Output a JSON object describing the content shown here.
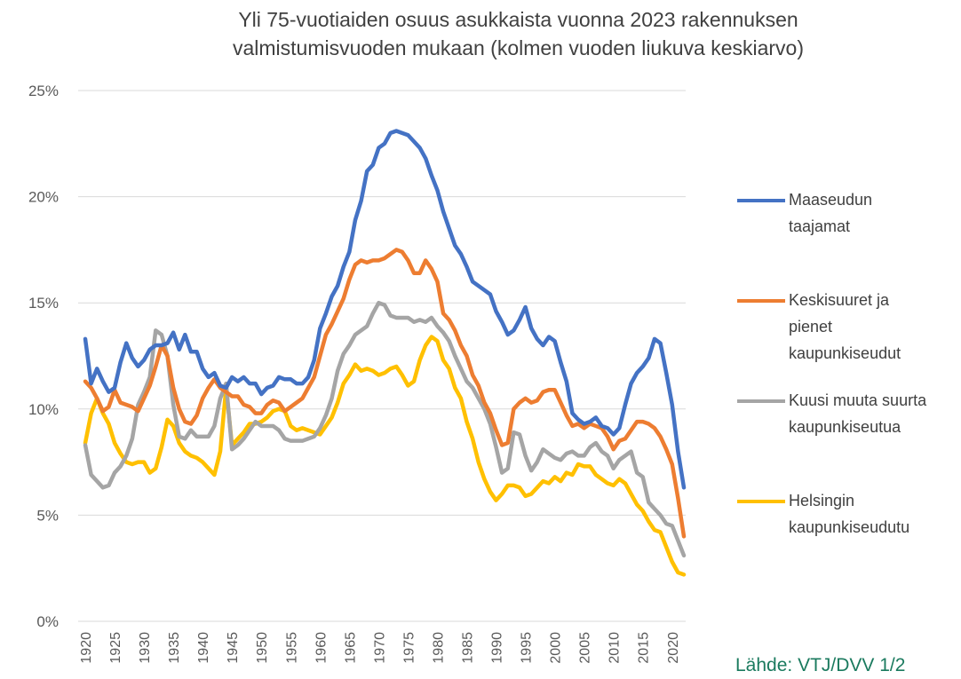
{
  "chart_data": {
    "type": "line",
    "title": [
      "Yli 75-vuotiaiden osuus asukkaista vuonna 2023 rakennuksen",
      "valmistumisvuoden mukaan (kolmen vuoden liukuva keskiarvo)"
    ],
    "source": "Lähde: VTJ/DVV 1/2",
    "x": [
      1920,
      1921,
      1922,
      1923,
      1924,
      1925,
      1926,
      1927,
      1928,
      1929,
      1930,
      1931,
      1932,
      1933,
      1934,
      1935,
      1936,
      1937,
      1938,
      1939,
      1940,
      1941,
      1942,
      1943,
      1944,
      1945,
      1946,
      1947,
      1948,
      1949,
      1950,
      1951,
      1952,
      1953,
      1954,
      1955,
      1956,
      1957,
      1958,
      1959,
      1960,
      1961,
      1962,
      1963,
      1964,
      1965,
      1966,
      1967,
      1968,
      1969,
      1970,
      1971,
      1972,
      1973,
      1974,
      1975,
      1976,
      1977,
      1978,
      1979,
      1980,
      1981,
      1982,
      1983,
      1984,
      1985,
      1986,
      1987,
      1988,
      1989,
      1990,
      1991,
      1992,
      1993,
      1994,
      1995,
      1996,
      1997,
      1998,
      1999,
      2000,
      2001,
      2002,
      2003,
      2004,
      2005,
      2006,
      2007,
      2008,
      2009,
      2010,
      2011,
      2012,
      2013,
      2014,
      2015,
      2016,
      2017,
      2018,
      2019,
      2020,
      2021,
      2022
    ],
    "xlim": [
      1919,
      2023
    ],
    "xticks": [
      1920,
      1925,
      1930,
      1935,
      1940,
      1945,
      1950,
      1955,
      1960,
      1965,
      1970,
      1975,
      1980,
      1985,
      1990,
      1995,
      2000,
      2005,
      2010,
      2015,
      2020
    ],
    "ylim": [
      0,
      25
    ],
    "yticks": [
      {
        "value": 0,
        "label": "0%"
      },
      {
        "value": 5,
        "label": "5%"
      },
      {
        "value": 10,
        "label": "10%"
      },
      {
        "value": 15,
        "label": "15%"
      },
      {
        "value": 20,
        "label": "20%"
      },
      {
        "value": 25,
        "label": "25%"
      }
    ],
    "grid": true,
    "legend": "right",
    "series": [
      {
        "name": "Maaseudun taajamat",
        "color": "#4472c4",
        "values": [
          13.3,
          11.2,
          11.9,
          11.3,
          10.8,
          11.0,
          12.2,
          13.1,
          12.4,
          12.0,
          12.3,
          12.8,
          13.0,
          13.0,
          13.1,
          13.6,
          12.8,
          13.5,
          12.7,
          12.7,
          11.9,
          11.5,
          11.7,
          11.1,
          11.0,
          11.5,
          11.3,
          11.5,
          11.2,
          11.2,
          10.7,
          11.0,
          11.1,
          11.5,
          11.4,
          11.4,
          11.2,
          11.2,
          11.5,
          12.3,
          13.8,
          14.5,
          15.3,
          15.8,
          16.7,
          17.4,
          18.9,
          19.8,
          21.2,
          21.5,
          22.3,
          22.5,
          23.0,
          23.1,
          23.0,
          22.9,
          22.6,
          22.3,
          21.8,
          21.0,
          20.3,
          19.3,
          18.5,
          17.7,
          17.3,
          16.7,
          16.0,
          15.8,
          15.6,
          15.4,
          14.6,
          14.1,
          13.5,
          13.7,
          14.2,
          14.8,
          13.8,
          13.3,
          13.0,
          13.4,
          13.2,
          12.2,
          11.3,
          9.8,
          9.5,
          9.3,
          9.4,
          9.6,
          9.2,
          9.1,
          8.8,
          9.1,
          10.2,
          11.2,
          11.7,
          12.0,
          12.4,
          13.3,
          13.1,
          11.7,
          10.2,
          8.0,
          6.3
        ]
      },
      {
        "name": "Keskisuuret ja pienet kaupunkiseudut",
        "color": "#ed7d31",
        "values": [
          11.3,
          11.0,
          10.5,
          9.9,
          10.1,
          10.9,
          10.3,
          10.2,
          10.1,
          9.9,
          10.5,
          11.1,
          12.0,
          13.0,
          12.5,
          11.0,
          10.0,
          9.4,
          9.3,
          9.7,
          10.5,
          11.0,
          11.4,
          11.0,
          10.8,
          10.6,
          10.6,
          10.2,
          10.1,
          9.8,
          9.8,
          10.2,
          10.4,
          10.3,
          9.9,
          10.1,
          10.3,
          10.5,
          11.0,
          11.5,
          12.5,
          13.5,
          14.0,
          14.6,
          15.2,
          16.1,
          16.8,
          17.0,
          16.9,
          17.0,
          17.0,
          17.1,
          17.3,
          17.5,
          17.4,
          17.0,
          16.4,
          16.4,
          17.0,
          16.6,
          16.0,
          14.5,
          14.2,
          13.7,
          13.0,
          12.5,
          11.6,
          11.1,
          10.3,
          9.8,
          9.0,
          8.3,
          8.4,
          10.0,
          10.3,
          10.5,
          10.3,
          10.4,
          10.8,
          10.9,
          10.9,
          10.3,
          9.7,
          9.2,
          9.3,
          9.1,
          9.3,
          9.2,
          9.1,
          8.7,
          8.1,
          8.5,
          8.6,
          9.0,
          9.4,
          9.4,
          9.3,
          9.1,
          8.7,
          8.1,
          7.4,
          5.8,
          4.0
        ]
      },
      {
        "name": "Kuusi muuta suurta kaupunkiseutua",
        "color": "#a5a5a5",
        "values": [
          8.3,
          6.9,
          6.6,
          6.3,
          6.4,
          7.0,
          7.3,
          7.8,
          8.6,
          10.2,
          10.8,
          11.5,
          13.7,
          13.5,
          12.5,
          10.2,
          8.7,
          8.6,
          9.0,
          8.7,
          8.7,
          8.7,
          9.2,
          10.5,
          11.2,
          8.1,
          8.3,
          8.6,
          9.0,
          9.4,
          9.2,
          9.2,
          9.2,
          9.0,
          8.6,
          8.5,
          8.5,
          8.5,
          8.6,
          8.7,
          9.1,
          9.7,
          10.5,
          11.8,
          12.6,
          13.0,
          13.5,
          13.7,
          13.9,
          14.5,
          15.0,
          14.9,
          14.4,
          14.3,
          14.3,
          14.3,
          14.1,
          14.2,
          14.1,
          14.3,
          13.9,
          13.6,
          13.2,
          12.5,
          11.9,
          11.3,
          11.0,
          10.5,
          10.0,
          9.3,
          8.2,
          7.0,
          7.2,
          8.9,
          8.8,
          7.8,
          7.1,
          7.5,
          8.1,
          7.9,
          7.7,
          7.6,
          7.9,
          8.0,
          7.8,
          7.8,
          8.2,
          8.4,
          8.0,
          7.8,
          7.2,
          7.6,
          7.8,
          8.0,
          7.0,
          6.8,
          5.6,
          5.3,
          5.0,
          4.6,
          4.5,
          3.8,
          3.1
        ]
      },
      {
        "name": "Helsingin kaupunkiseudutu",
        "color": "#ffc000",
        "values": [
          8.4,
          9.8,
          10.5,
          9.8,
          9.3,
          8.4,
          7.9,
          7.5,
          7.4,
          7.5,
          7.5,
          7.0,
          7.2,
          8.2,
          9.5,
          9.2,
          8.4,
          8.0,
          7.8,
          7.7,
          7.5,
          7.2,
          6.9,
          8.0,
          11.0,
          8.3,
          8.6,
          8.9,
          9.3,
          9.3,
          9.4,
          9.6,
          9.9,
          10.0,
          9.9,
          9.2,
          9.0,
          9.1,
          9.0,
          8.9,
          8.8,
          9.2,
          9.6,
          10.3,
          11.2,
          11.6,
          12.1,
          11.8,
          11.9,
          11.8,
          11.6,
          11.7,
          11.9,
          12.0,
          11.6,
          11.1,
          11.3,
          12.3,
          13.0,
          13.4,
          13.2,
          12.3,
          11.9,
          11.0,
          10.5,
          9.4,
          8.6,
          7.5,
          6.7,
          6.1,
          5.7,
          6.0,
          6.4,
          6.4,
          6.3,
          5.9,
          6.0,
          6.3,
          6.6,
          6.5,
          6.8,
          6.6,
          7.0,
          6.9,
          7.4,
          7.3,
          7.3,
          6.9,
          6.7,
          6.5,
          6.4,
          6.7,
          6.5,
          6.0,
          5.5,
          5.2,
          4.7,
          4.3,
          4.2,
          3.5,
          2.8,
          2.3,
          2.2
        ]
      }
    ]
  }
}
